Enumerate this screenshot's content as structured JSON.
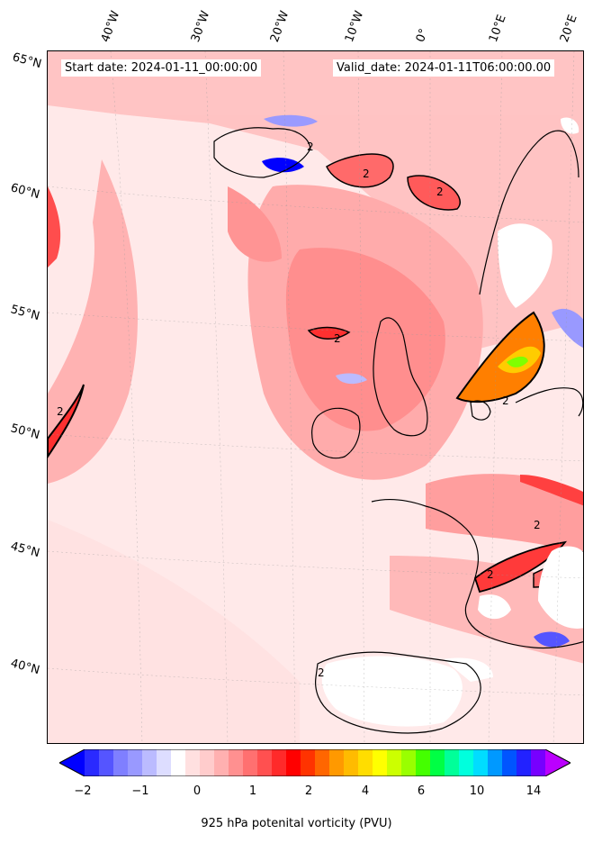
{
  "header": {
    "start_label": "Start date: 2024-01-11_00:00:00",
    "valid_label": "Valid_date: 2024-01-11T06:00:00.00"
  },
  "lon_ticks": [
    "40°W",
    "30°W",
    "20°W",
    "10°W",
    "0°",
    "10°E",
    "20°E"
  ],
  "lat_ticks": [
    "65°N",
    "60°N",
    "55°N",
    "50°N",
    "45°N",
    "40°N"
  ],
  "contour_label": "2",
  "colorbar": {
    "title": "925 hPa potenital vorticity (PVU)",
    "tick_labels": [
      "−2",
      "−1",
      "0",
      "1",
      "2",
      "4",
      "6",
      "10",
      "14"
    ],
    "colors": [
      "#0000ff",
      "#2a2aff",
      "#5555ff",
      "#7f7fff",
      "#9999ff",
      "#bbbbff",
      "#ddddff",
      "#ffffff",
      "#ffe0e0",
      "#ffcccc",
      "#ffb0b0",
      "#ff9090",
      "#ff7070",
      "#ff5050",
      "#ff2a2a",
      "#ff0000",
      "#ff3300",
      "#ff6600",
      "#ff9900",
      "#ffbb00",
      "#ffdd00",
      "#ffff00",
      "#ccff00",
      "#99ff00",
      "#44ff00",
      "#00ff44",
      "#00ff99",
      "#00ffdd",
      "#00ddff",
      "#0099ff",
      "#0055ff",
      "#2222ff",
      "#7700ff",
      "#bb00ff"
    ]
  },
  "colors": {
    "land_outline": "#000000",
    "background": "#ffe9e9"
  }
}
